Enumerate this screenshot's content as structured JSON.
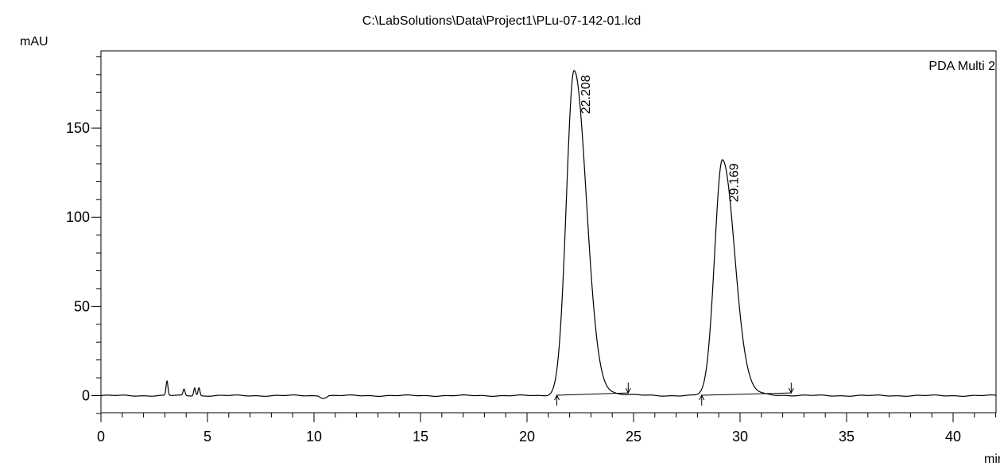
{
  "chart_data": {
    "type": "line",
    "title": "C:\\LabSolutions\\Data\\Project1\\PLu-07-142-01.lcd",
    "xlabel": "min",
    "ylabel": "mAU",
    "legend": "PDA Multi 2",
    "legend_placement": "top-right",
    "xlim": [
      0,
      42
    ],
    "ylim": [
      -10,
      192
    ],
    "grid": false,
    "x_ticks": [
      0,
      5,
      10,
      15,
      20,
      25,
      30,
      35,
      40
    ],
    "x_tick_labels": [
      "0",
      "5",
      "10",
      "15",
      "20",
      "25",
      "30",
      "35",
      "40"
    ],
    "y_ticks": [
      0,
      50,
      100,
      150
    ],
    "y_tick_labels": [
      "0",
      "50",
      "100",
      "150"
    ],
    "peaks": [
      {
        "retention_time": 22.208,
        "label": "22.208",
        "height": 182,
        "start": 21.4,
        "end": 24.75
      },
      {
        "retention_time": 29.169,
        "label": "29.169",
        "height": 132.5,
        "start": 28.2,
        "end": 32.4
      }
    ],
    "minor_peaks": [
      {
        "x": 3.1,
        "height": 8
      },
      {
        "x": 3.9,
        "height": 3.5
      },
      {
        "x": 4.4,
        "height": 4.5
      },
      {
        "x": 4.6,
        "height": 4.5
      }
    ]
  }
}
